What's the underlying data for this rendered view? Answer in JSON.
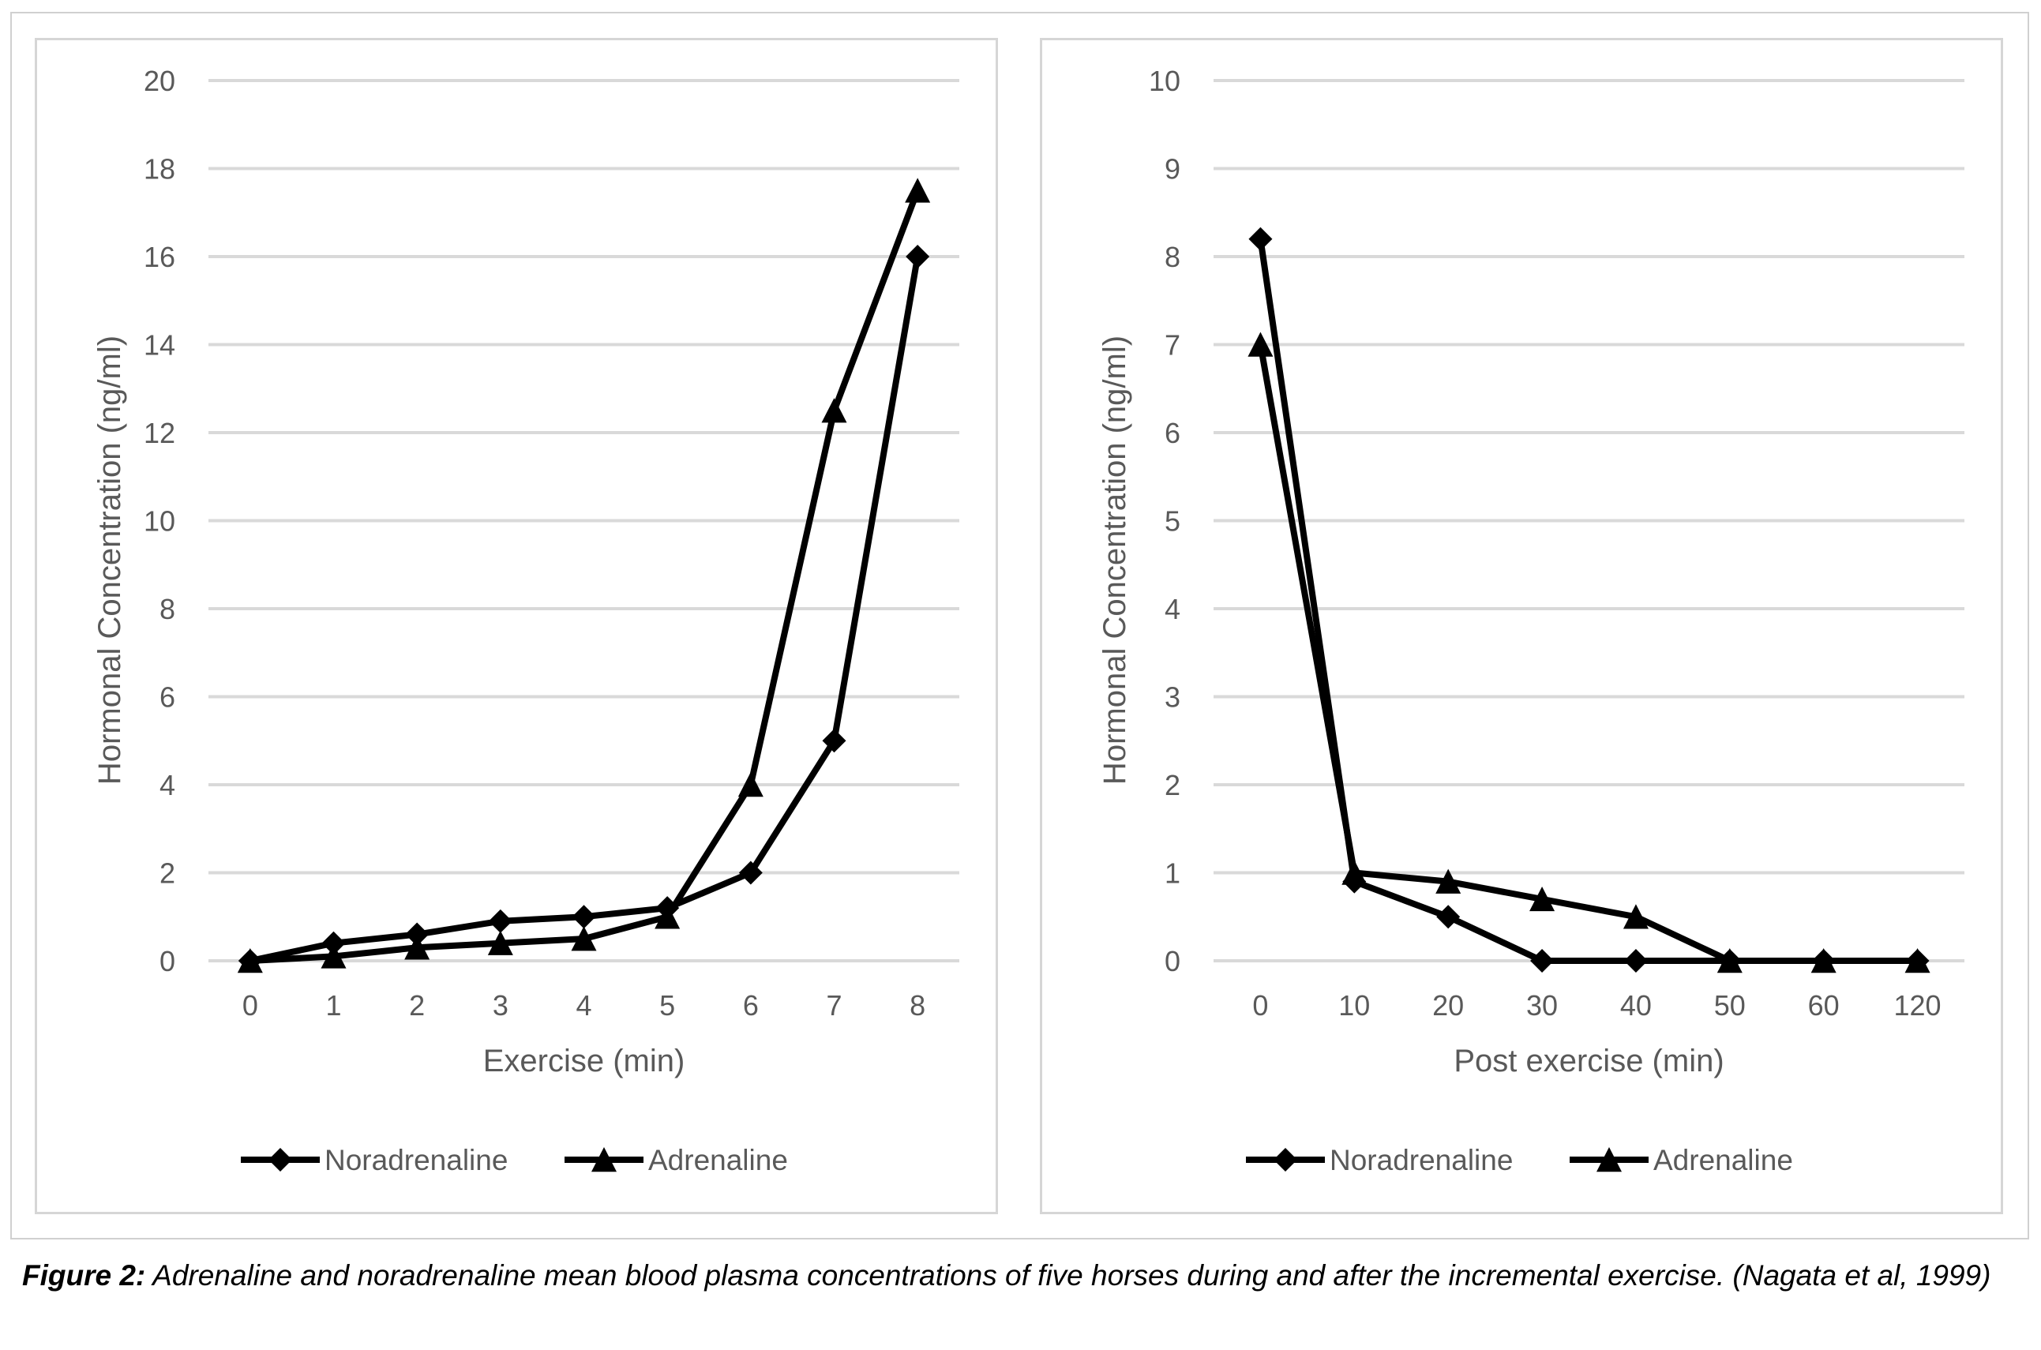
{
  "figure": {
    "caption_label": "Figure 2:",
    "caption_text": " Adrenaline and noradrenaline mean blood plasma concentrations of five horses during and after the incremental exercise. (Nagata et al, 1999)"
  },
  "chart_data": [
    {
      "type": "line",
      "title": "",
      "xlabel": "Exercise (min)",
      "ylabel": "Hormonal Concentration (ng/ml)",
      "ylim": [
        0,
        20
      ],
      "yticks": [
        "0",
        "2",
        "4",
        "6",
        "8",
        "10",
        "12",
        "14",
        "16",
        "18",
        "20"
      ],
      "categories": [
        "0",
        "1",
        "2",
        "3",
        "4",
        "5",
        "6",
        "7",
        "8"
      ],
      "grid": true,
      "legend": "bottom",
      "series": [
        {
          "name": "Noradrenaline",
          "marker": "diamond",
          "color": "#000000",
          "values": [
            0,
            0.4,
            0.6,
            0.9,
            1.0,
            1.2,
            2.0,
            5.0,
            16.0
          ]
        },
        {
          "name": "Adrenaline",
          "marker": "triangle",
          "color": "#000000",
          "values": [
            0,
            0.1,
            0.3,
            0.4,
            0.5,
            1.0,
            4.0,
            12.5,
            17.5
          ]
        }
      ]
    },
    {
      "type": "line",
      "title": "",
      "xlabel": "Post exercise (min)",
      "ylabel": "Hormonal Concentration (ng/ml)",
      "ylim": [
        0,
        10
      ],
      "yticks": [
        "0",
        "1",
        "2",
        "3",
        "4",
        "5",
        "6",
        "7",
        "8",
        "9",
        "10"
      ],
      "categories": [
        "0",
        "10",
        "20",
        "30",
        "40",
        "50",
        "60",
        "120"
      ],
      "grid": true,
      "legend": "bottom",
      "series": [
        {
          "name": "Noradrenaline",
          "marker": "diamond",
          "color": "#000000",
          "values": [
            8.2,
            0.9,
            0.5,
            0,
            0,
            0,
            0,
            0
          ]
        },
        {
          "name": "Adrenaline",
          "marker": "triangle",
          "color": "#000000",
          "values": [
            7.0,
            1.0,
            0.9,
            0.7,
            0.5,
            0,
            0,
            0
          ]
        }
      ]
    }
  ]
}
